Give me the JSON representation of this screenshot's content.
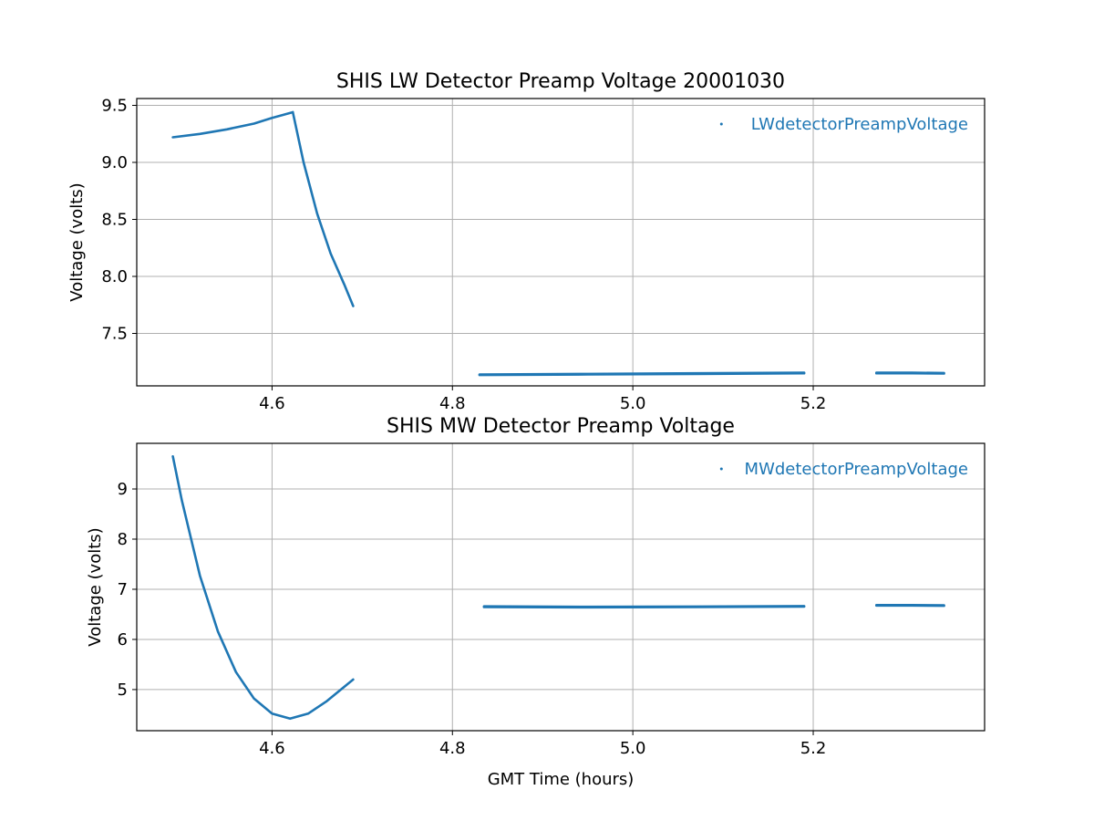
{
  "chart_data": [
    {
      "type": "scatter",
      "title": "SHIS LW Detector Preamp Voltage 20001030",
      "xlabel": "",
      "ylabel": "Voltage (volts)",
      "xlim": [
        4.45,
        5.39
      ],
      "ylim": [
        7.04,
        9.56
      ],
      "xticks": [
        4.6,
        4.8,
        5.0,
        5.2
      ],
      "xtick_labels": [
        "4.6",
        "4.8",
        "5.0",
        "5.2"
      ],
      "yticks": [
        7.5,
        8.0,
        8.5,
        9.0,
        9.5
      ],
      "ytick_labels": [
        "7.5",
        "8.0",
        "8.5",
        "9.0",
        "9.5"
      ],
      "grid": true,
      "legend_position": "top-right",
      "series": [
        {
          "name": "LWdetectorPreampVoltage",
          "color": "#1f77b4",
          "segments": [
            {
              "x": [
                4.49,
                4.52,
                4.55,
                4.58,
                4.6,
                4.623
              ],
              "y": [
                9.22,
                9.25,
                9.29,
                9.34,
                9.39,
                9.44
              ]
            },
            {
              "x": [
                4.623,
                4.635,
                4.65,
                4.665,
                4.68,
                4.69
              ],
              "y": [
                9.44,
                9.0,
                8.55,
                8.2,
                7.93,
                7.74
              ]
            },
            {
              "x": [
                4.83,
                4.95,
                5.07,
                5.19
              ],
              "y": [
                7.14,
                7.145,
                7.15,
                7.155
              ]
            },
            {
              "x": [
                4.83,
                4.95,
                5.07,
                5.19
              ],
              "y": [
                7.135,
                7.14,
                7.145,
                7.15
              ]
            },
            {
              "x": [
                5.27,
                5.31,
                5.345
              ],
              "y": [
                7.155,
                7.155,
                7.153
              ]
            },
            {
              "x": [
                5.27,
                5.31,
                5.345
              ],
              "y": [
                7.15,
                7.15,
                7.148
              ]
            }
          ]
        }
      ]
    },
    {
      "type": "scatter",
      "title": "SHIS MW Detector Preamp Voltage",
      "xlabel": "GMT Time (hours)",
      "ylabel": "Voltage (volts)",
      "xlim": [
        4.45,
        5.39
      ],
      "ylim": [
        4.18,
        9.91
      ],
      "xticks": [
        4.6,
        4.8,
        5.0,
        5.2
      ],
      "xtick_labels": [
        "4.6",
        "4.8",
        "5.0",
        "5.2"
      ],
      "yticks": [
        5,
        6,
        7,
        8,
        9
      ],
      "ytick_labels": [
        "5",
        "6",
        "7",
        "8",
        "9"
      ],
      "grid": true,
      "legend_position": "top-right",
      "series": [
        {
          "name": "MWdetectorPreampVoltage",
          "color": "#1f77b4",
          "segments": [
            {
              "x": [
                4.49,
                4.5,
                4.52,
                4.54,
                4.56,
                4.58,
                4.6,
                4.62,
                4.64,
                4.66,
                4.69
              ],
              "y": [
                9.65,
                8.77,
                7.27,
                6.16,
                5.35,
                4.82,
                4.52,
                4.42,
                4.52,
                4.76,
                5.2
              ]
            },
            {
              "x": [
                4.835,
                4.95,
                5.07,
                5.19
              ],
              "y": [
                6.66,
                6.65,
                6.655,
                6.665
              ]
            },
            {
              "x": [
                4.835,
                4.95,
                5.07,
                5.19
              ],
              "y": [
                6.645,
                6.64,
                6.645,
                6.655
              ]
            },
            {
              "x": [
                5.27,
                5.31,
                5.345
              ],
              "y": [
                6.685,
                6.685,
                6.68
              ]
            },
            {
              "x": [
                5.27,
                5.31,
                5.345
              ],
              "y": [
                6.675,
                6.675,
                6.67
              ]
            }
          ]
        }
      ]
    }
  ]
}
